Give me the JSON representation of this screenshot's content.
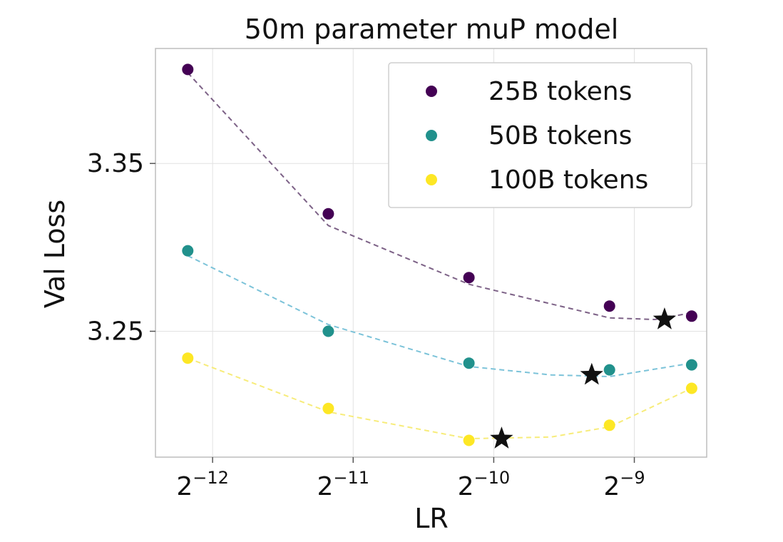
{
  "chart_data": {
    "type": "scatter",
    "title": "50m parameter muP model",
    "xlabel": "LR",
    "ylabel": "Val Loss",
    "xscale": "log2",
    "x_ticks": [
      {
        "base": "2",
        "exp": "−12",
        "value": 0.000244140625
      },
      {
        "base": "2",
        "exp": "−11",
        "value": 0.00048828125
      },
      {
        "base": "2",
        "exp": "−10",
        "value": 0.0009765625
      },
      {
        "base": "2",
        "exp": "−9",
        "value": 0.001953125
      }
    ],
    "xlim": [
      0.0001842,
      0.0027906
    ],
    "y_ticks": [
      {
        "label": "3.35",
        "value": 3.35
      },
      {
        "label": "3.25",
        "value": 3.25
      }
    ],
    "ylim": [
      3.175,
      3.4185
    ],
    "grid": true,
    "legend_position": "top-right",
    "series": [
      {
        "name": "25B tokens",
        "color": "#440154",
        "fit_color": "#7d6287",
        "x": [
          0.000216,
          0.000432,
          0.000864,
          0.001728,
          0.002591
        ],
        "y": [
          3.406,
          3.32,
          3.282,
          3.265,
          3.259
        ],
        "fit_x": [
          0.000216,
          0.000432,
          0.000864,
          0.001728,
          0.00216,
          0.002591
        ],
        "fit_y": [
          3.404,
          3.313,
          3.278,
          3.258,
          3.257,
          3.261
        ],
        "optimum": {
          "x": 0.002267,
          "y": 3.257
        }
      },
      {
        "name": "50B tokens",
        "color": "#21918c",
        "fit_color": "#7cc3d9",
        "x": [
          0.000216,
          0.000432,
          0.000864,
          0.001728,
          0.002591
        ],
        "y": [
          3.298,
          3.25,
          3.231,
          3.227,
          3.23
        ],
        "fit_x": [
          0.000216,
          0.000432,
          0.000864,
          0.001296,
          0.001728,
          0.002591
        ],
        "fit_y": [
          3.295,
          3.254,
          3.229,
          3.224,
          3.223,
          3.231
        ],
        "optimum": {
          "x": 0.001583,
          "y": 3.224
        }
      },
      {
        "name": "100B tokens",
        "color": "#fde725",
        "fit_color": "#f7ec7a",
        "x": [
          0.000216,
          0.000432,
          0.000864,
          0.001728,
          0.002591
        ],
        "y": [
          3.234,
          3.204,
          3.185,
          3.194,
          3.216
        ],
        "fit_x": [
          0.000216,
          0.000432,
          0.000864,
          0.001296,
          0.001728,
          0.002591
        ],
        "fit_y": [
          3.234,
          3.202,
          3.186,
          3.187,
          3.193,
          3.216
        ],
        "optimum": {
          "x": 0.001015,
          "y": 3.186
        }
      }
    ]
  }
}
